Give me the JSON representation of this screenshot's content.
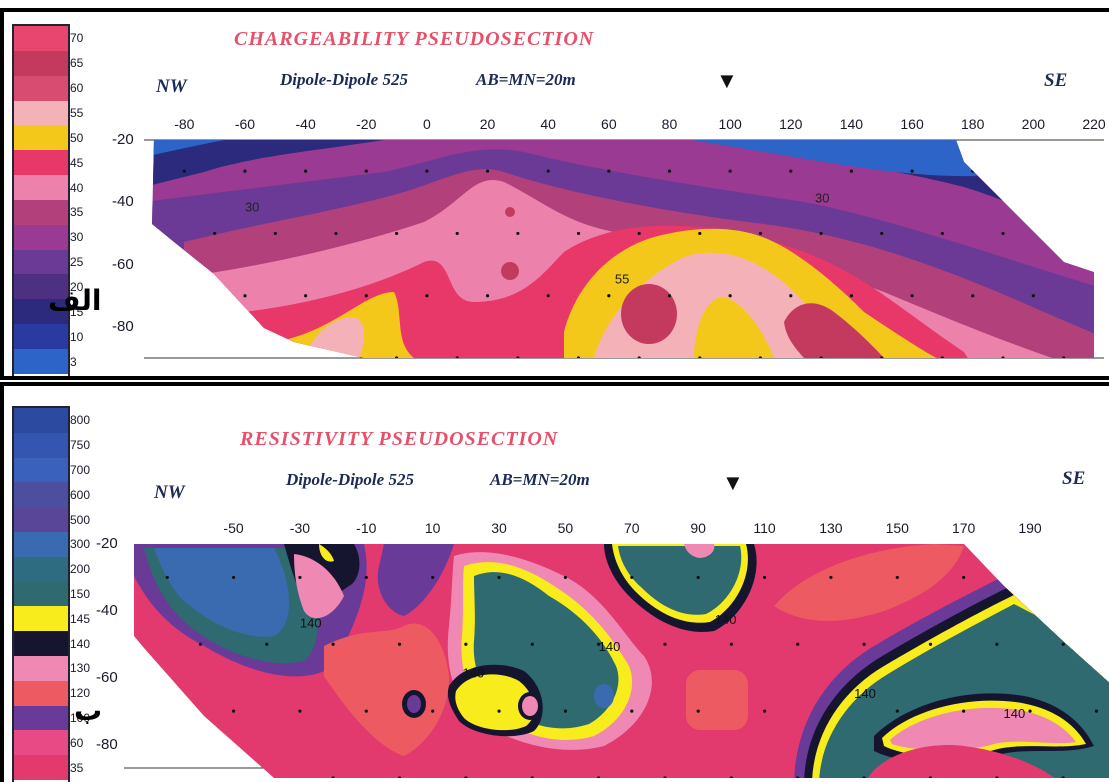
{
  "chart_data": [
    {
      "type": "heatmap",
      "panel_letter": "الف",
      "title": "CHARGEABILITY  PSEUDOSECTION",
      "array": "Dipole-Dipole 525",
      "spacing": "AB=MN=20m",
      "left_label": "NW",
      "right_label": "SE",
      "marker": "▼",
      "x_ticks": [
        "-80",
        "-60",
        "-40",
        "-20",
        "0",
        "20",
        "40",
        "60",
        "80",
        "100",
        "120",
        "140",
        "160",
        "180",
        "200",
        "220"
      ],
      "y_ticks": [
        "-20",
        "-40",
        "-60",
        "-80"
      ],
      "xlim": [
        -90,
        220
      ],
      "ylim": [
        -20,
        -90
      ],
      "marker_x": 100,
      "legend": [
        {
          "label": "70",
          "color": "#e8466e"
        },
        {
          "label": "65",
          "color": "#c43a5e"
        },
        {
          "label": "60",
          "color": "#d84c72"
        },
        {
          "label": "55",
          "color": "#f4b2b8"
        },
        {
          "label": "50",
          "color": "#f4c81a"
        },
        {
          "label": "45",
          "color": "#e8386a"
        },
        {
          "label": "40",
          "color": "#ec82ac"
        },
        {
          "label": "35",
          "color": "#b2407a"
        },
        {
          "label": "30",
          "color": "#9a3a92"
        },
        {
          "label": "25",
          "color": "#6a3a96"
        },
        {
          "label": "20",
          "color": "#4e3082"
        },
        {
          "label": "15",
          "color": "#2c2a7c"
        },
        {
          "label": "10",
          "color": "#2a3aa0"
        },
        {
          "label": "3",
          "color": "#2c64c8"
        }
      ],
      "contour_labels": [
        {
          "text": "30",
          "x": -60,
          "y": -43
        },
        {
          "text": "30",
          "x": 128,
          "y": -40
        },
        {
          "text": "55",
          "x": 62,
          "y": -66
        }
      ]
    },
    {
      "type": "heatmap",
      "panel_letter": "ب",
      "title": "RESISTIVITY  PSEUDOSECTION",
      "array": "Dipole-Dipole 525",
      "spacing": "AB=MN=20m",
      "left_label": "NW",
      "right_label": "SE",
      "marker": "▼",
      "x_ticks": [
        "-50",
        "-30",
        "-10",
        "10",
        "30",
        "50",
        "70",
        "90",
        "110",
        "130",
        "150",
        "170",
        "190"
      ],
      "y_ticks": [
        "-20",
        "-40",
        "-60",
        "-80"
      ],
      "xlim": [
        -80,
        215
      ],
      "ylim": [
        -20,
        -90
      ],
      "marker_x": 100,
      "legend": [
        {
          "label": "800",
          "color": "#2c4aa0"
        },
        {
          "label": "750",
          "color": "#3456b0"
        },
        {
          "label": "700",
          "color": "#3a62bc"
        },
        {
          "label": "600",
          "color": "#4e4ea0"
        },
        {
          "label": "500",
          "color": "#5a4698"
        },
        {
          "label": "300",
          "color": "#3a6ab0"
        },
        {
          "label": "200",
          "color": "#2e6c82"
        },
        {
          "label": "150",
          "color": "#2e6a70"
        },
        {
          "label": "145",
          "color": "#f8ec1c"
        },
        {
          "label": "140",
          "color": "#151530"
        },
        {
          "label": "130",
          "color": "#f088b4"
        },
        {
          "label": "120",
          "color": "#ee5a62"
        },
        {
          "label": "100",
          "color": "#6a3a98"
        },
        {
          "label": "60",
          "color": "#e84a86"
        },
        {
          "label": "35",
          "color": "#e23a6e"
        }
      ],
      "contour_labels": [
        {
          "text": "140",
          "x": -30,
          "y": -45
        },
        {
          "text": "140",
          "x": 19,
          "y": -60
        },
        {
          "text": "140",
          "x": 60,
          "y": -52
        },
        {
          "text": "140",
          "x": 95,
          "y": -44
        },
        {
          "text": "140",
          "x": 137,
          "y": -66
        },
        {
          "text": "140",
          "x": 182,
          "y": -72
        }
      ]
    }
  ]
}
